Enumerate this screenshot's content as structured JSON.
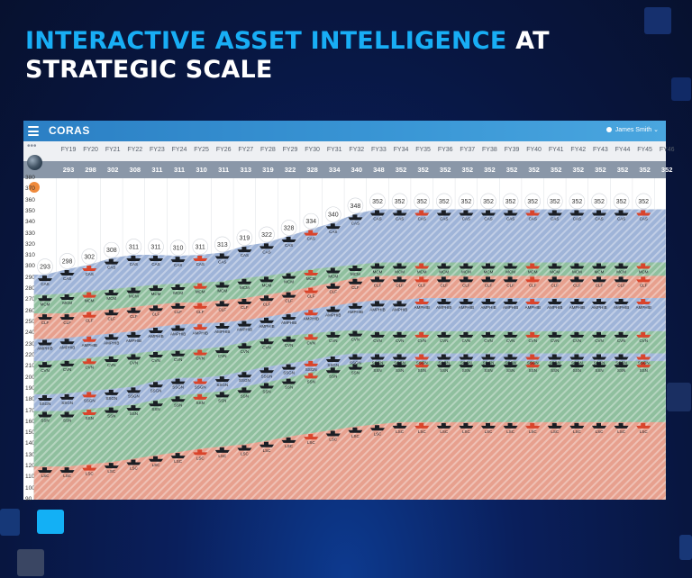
{
  "headline": {
    "highlight": "INTERACTIVE ASSET INTELLIGENCE",
    "rest": " AT STRATEGIC SCALE"
  },
  "app": {
    "brand": "CORAS",
    "user": "James Smith",
    "icons": [
      "menu-icon",
      "globe-icon",
      "user-icon",
      "chevron-down-icon",
      "more-icon"
    ]
  },
  "chart_data": {
    "type": "area",
    "x": [
      "FY19",
      "FY20",
      "FY21",
      "FY22",
      "FY23",
      "FY24",
      "FY25",
      "FY26",
      "FY27",
      "FY28",
      "FY29",
      "FY30",
      "FY31",
      "FY32",
      "FY33",
      "FY34",
      "FY35",
      "FY36",
      "FY37",
      "FY38",
      "FY39",
      "FY40",
      "FY41",
      "FY42",
      "FY43",
      "FY44",
      "FY45",
      "FY46"
    ],
    "totals": [
      293,
      298,
      302,
      308,
      311,
      311,
      310,
      311,
      313,
      319,
      322,
      328,
      334,
      340,
      348,
      352,
      352,
      352,
      352,
      352,
      352,
      352,
      352,
      352,
      352,
      352,
      352,
      352
    ],
    "y_ticks": [
      380,
      370,
      360,
      350,
      340,
      330,
      320,
      310,
      300,
      290,
      280,
      270,
      260,
      250,
      240,
      230,
      220,
      210,
      200,
      190,
      180,
      170,
      160,
      150,
      140,
      130,
      120,
      110,
      100,
      90
    ],
    "ylim": [
      90,
      380
    ],
    "series": [
      {
        "name": "LSC",
        "color": "#e7a08e"
      },
      {
        "name": "SSN",
        "color": "#8fbf9e"
      },
      {
        "name": "SSGN",
        "color": "#9fb4d8"
      },
      {
        "name": "CVN",
        "color": "#8fbf9e"
      },
      {
        "name": "AMPHIB",
        "color": "#9fb4d8"
      },
      {
        "name": "CLF",
        "color": "#e7a08e"
      },
      {
        "name": "MCM",
        "color": "#8fbf9e"
      },
      {
        "name": "CAS",
        "color": "#9fb4d8"
      }
    ],
    "band_tops": {
      "LSC": [
        120,
        120,
        122,
        124,
        127,
        130,
        133,
        136,
        138,
        140,
        143,
        147,
        150,
        153,
        156,
        158,
        160,
        160,
        160,
        160,
        160,
        160,
        160,
        160,
        160,
        160,
        160,
        160
      ],
      "SSN": [
        170,
        170,
        172,
        174,
        176,
        180,
        184,
        186,
        188,
        192,
        196,
        200,
        205,
        210,
        213,
        215,
        215,
        215,
        215,
        215,
        215,
        215,
        215,
        215,
        215,
        215,
        215,
        215
      ],
      "SSGN": [
        185,
        186,
        188,
        190,
        192,
        197,
        200,
        200,
        202,
        206,
        210,
        213,
        216,
        220,
        222,
        222,
        222,
        222,
        222,
        222,
        222,
        222,
        222,
        222,
        222,
        222,
        222,
        222
      ],
      "CVN": [
        215,
        216,
        218,
        220,
        222,
        224,
        225,
        226,
        228,
        232,
        236,
        238,
        240,
        242,
        243,
        242,
        242,
        242,
        242,
        242,
        242,
        242,
        242,
        242,
        242,
        242,
        242,
        242
      ],
      "AMPHIB": [
        235,
        236,
        238,
        240,
        242,
        246,
        248,
        249,
        250,
        252,
        255,
        258,
        262,
        265,
        268,
        270,
        270,
        272,
        272,
        272,
        272,
        272,
        272,
        272,
        272,
        272,
        272,
        272
      ],
      "CLF": [
        258,
        258,
        260,
        262,
        264,
        266,
        268,
        268,
        270,
        272,
        275,
        278,
        282,
        286,
        290,
        292,
        292,
        292,
        292,
        292,
        292,
        292,
        292,
        292,
        292,
        292,
        292,
        292
      ],
      "MCM": [
        275,
        276,
        278,
        280,
        282,
        284,
        285,
        286,
        287,
        290,
        292,
        295,
        298,
        300,
        302,
        304,
        304,
        304,
        304,
        304,
        304,
        304,
        304,
        304,
        304,
        304,
        304,
        304
      ],
      "CAS": [
        293,
        298,
        302,
        308,
        311,
        311,
        310,
        311,
        313,
        319,
        322,
        328,
        334,
        340,
        348,
        352,
        352,
        352,
        352,
        352,
        352,
        352,
        352,
        352,
        352,
        352,
        352,
        352
      ]
    }
  }
}
